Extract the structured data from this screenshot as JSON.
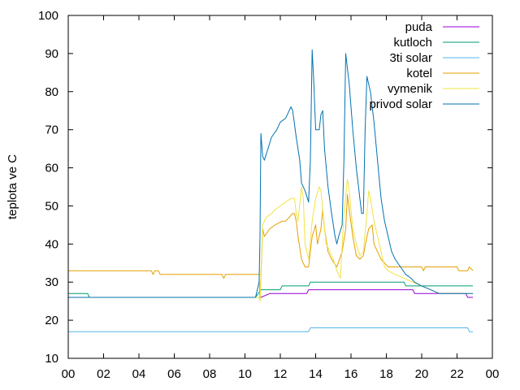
{
  "chart_data": {
    "type": "line",
    "ylabel": "teplota ve C",
    "xlabel": "",
    "title": "",
    "xlim": [
      0,
      24
    ],
    "ylim": [
      10,
      100
    ],
    "x_ticks": [
      "00",
      "02",
      "04",
      "06",
      "08",
      "10",
      "12",
      "14",
      "16",
      "18",
      "20",
      "22",
      "00"
    ],
    "y_ticks": [
      "10",
      "20",
      "30",
      "40",
      "50",
      "60",
      "70",
      "80",
      "90",
      "100"
    ],
    "grid": false,
    "legend_position": "top-right",
    "series": [
      {
        "name": "puda",
        "color": "#9400d3",
        "points": [
          [
            0,
            26
          ],
          [
            1.2,
            26
          ],
          [
            1.2,
            26
          ],
          [
            10.9,
            26
          ],
          [
            11.4,
            27
          ],
          [
            13.5,
            27
          ],
          [
            13.6,
            28
          ],
          [
            19.5,
            28
          ],
          [
            19.6,
            27
          ],
          [
            21.5,
            27
          ],
          [
            21.6,
            27
          ],
          [
            22.5,
            27
          ],
          [
            22.6,
            26
          ],
          [
            22.9,
            26
          ]
        ]
      },
      {
        "name": "kutloch",
        "color": "#009e73",
        "points": [
          [
            0,
            27
          ],
          [
            1.1,
            27
          ],
          [
            1.2,
            26
          ],
          [
            10.6,
            26
          ],
          [
            10.9,
            28
          ],
          [
            11.5,
            28
          ],
          [
            11.6,
            28
          ],
          [
            12.0,
            28
          ],
          [
            12.1,
            29
          ],
          [
            13.6,
            29
          ],
          [
            13.7,
            30
          ],
          [
            19.0,
            30
          ],
          [
            19.1,
            29
          ],
          [
            22.9,
            29
          ]
        ]
      },
      {
        "name": "3ti solar",
        "color": "#56b4e9",
        "points": [
          [
            0,
            17
          ],
          [
            13.6,
            17
          ],
          [
            13.7,
            18
          ],
          [
            22.6,
            18
          ],
          [
            22.7,
            17
          ],
          [
            22.9,
            17
          ]
        ]
      },
      {
        "name": "kotel",
        "color": "#e69f00",
        "points": [
          [
            0,
            33
          ],
          [
            4.7,
            33
          ],
          [
            4.8,
            32
          ],
          [
            4.9,
            33
          ],
          [
            5.1,
            33
          ],
          [
            5.2,
            32
          ],
          [
            8.7,
            32
          ],
          [
            8.8,
            31
          ],
          [
            8.9,
            32
          ],
          [
            10.8,
            32
          ],
          [
            10.85,
            25
          ],
          [
            10.9,
            31
          ],
          [
            11.0,
            44
          ],
          [
            11.1,
            42
          ],
          [
            11.4,
            44
          ],
          [
            11.7,
            45
          ],
          [
            12.1,
            46
          ],
          [
            12.3,
            46
          ],
          [
            12.5,
            47
          ],
          [
            12.7,
            48
          ],
          [
            12.8,
            48
          ],
          [
            12.9,
            46
          ],
          [
            13.0,
            42
          ],
          [
            13.2,
            36
          ],
          [
            13.4,
            34
          ],
          [
            13.6,
            34
          ],
          [
            13.8,
            42
          ],
          [
            14.0,
            45
          ],
          [
            14.1,
            40
          ],
          [
            14.3,
            44
          ],
          [
            14.4,
            49
          ],
          [
            14.5,
            44
          ],
          [
            14.7,
            38
          ],
          [
            14.9,
            36
          ],
          [
            15.2,
            34
          ],
          [
            15.5,
            38
          ],
          [
            15.7,
            44
          ],
          [
            15.8,
            53
          ],
          [
            15.9,
            49
          ],
          [
            16.1,
            42
          ],
          [
            16.3,
            37
          ],
          [
            16.5,
            36
          ],
          [
            16.7,
            37
          ],
          [
            16.9,
            42
          ],
          [
            17.0,
            44
          ],
          [
            17.2,
            45
          ],
          [
            17.3,
            40
          ],
          [
            17.5,
            38
          ],
          [
            17.7,
            36
          ],
          [
            17.9,
            35
          ],
          [
            18.1,
            34
          ],
          [
            19.3,
            34
          ],
          [
            19.4,
            34
          ],
          [
            20.0,
            34
          ],
          [
            20.1,
            33
          ],
          [
            20.2,
            34
          ],
          [
            22.0,
            34
          ],
          [
            22.1,
            33
          ],
          [
            22.6,
            33
          ],
          [
            22.7,
            34
          ],
          [
            22.9,
            33
          ]
        ]
      },
      {
        "name": "vymenik",
        "color": "#f0e442",
        "points": [
          [
            0,
            26
          ],
          [
            10.8,
            26
          ],
          [
            10.85,
            25
          ],
          [
            10.9,
            32
          ],
          [
            11.0,
            45
          ],
          [
            11.2,
            47
          ],
          [
            11.5,
            48
          ],
          [
            11.7,
            49
          ],
          [
            12.0,
            50
          ],
          [
            12.3,
            51
          ],
          [
            12.6,
            52
          ],
          [
            12.8,
            52
          ],
          [
            12.9,
            48
          ],
          [
            13.0,
            46
          ],
          [
            13.2,
            55
          ],
          [
            13.3,
            52
          ],
          [
            13.4,
            40
          ],
          [
            13.6,
            36
          ],
          [
            13.8,
            46
          ],
          [
            14.0,
            52
          ],
          [
            14.2,
            55
          ],
          [
            14.3,
            54
          ],
          [
            14.5,
            44
          ],
          [
            14.6,
            40
          ],
          [
            14.8,
            38
          ],
          [
            15.0,
            36
          ],
          [
            15.2,
            33
          ],
          [
            15.4,
            31
          ],
          [
            15.6,
            48
          ],
          [
            15.8,
            57
          ],
          [
            15.9,
            54
          ],
          [
            16.1,
            44
          ],
          [
            16.3,
            40
          ],
          [
            16.5,
            37
          ],
          [
            16.7,
            38
          ],
          [
            16.9,
            48
          ],
          [
            17.0,
            54
          ],
          [
            17.1,
            52
          ],
          [
            17.3,
            46
          ],
          [
            17.5,
            42
          ],
          [
            17.7,
            38
          ],
          [
            17.9,
            34
          ],
          [
            18.1,
            33
          ],
          [
            18.5,
            32
          ],
          [
            19.0,
            31
          ],
          [
            19.5,
            30
          ],
          [
            20.0,
            29
          ],
          [
            20.5,
            28
          ],
          [
            21.0,
            27
          ],
          [
            22.0,
            27
          ],
          [
            22.9,
            27
          ]
        ]
      },
      {
        "name": "privod solar",
        "color": "#0072b2",
        "points": [
          [
            0,
            26
          ],
          [
            10.6,
            26
          ],
          [
            10.7,
            28
          ],
          [
            10.8,
            30
          ],
          [
            10.85,
            42
          ],
          [
            10.9,
            69
          ],
          [
            11.0,
            63
          ],
          [
            11.1,
            62
          ],
          [
            11.3,
            65
          ],
          [
            11.5,
            68
          ],
          [
            11.8,
            70
          ],
          [
            12.0,
            72
          ],
          [
            12.3,
            73
          ],
          [
            12.5,
            75
          ],
          [
            12.6,
            76
          ],
          [
            12.7,
            75
          ],
          [
            12.9,
            68
          ],
          [
            13.1,
            62
          ],
          [
            13.2,
            56
          ],
          [
            13.4,
            54
          ],
          [
            13.6,
            51
          ],
          [
            13.7,
            62
          ],
          [
            13.8,
            91
          ],
          [
            13.9,
            82
          ],
          [
            14.0,
            70
          ],
          [
            14.2,
            70
          ],
          [
            14.3,
            74
          ],
          [
            14.4,
            75
          ],
          [
            14.5,
            65
          ],
          [
            14.7,
            55
          ],
          [
            14.9,
            48
          ],
          [
            15.1,
            42
          ],
          [
            15.2,
            40
          ],
          [
            15.3,
            42
          ],
          [
            15.5,
            45
          ],
          [
            15.6,
            62
          ],
          [
            15.7,
            90
          ],
          [
            15.9,
            82
          ],
          [
            16.1,
            70
          ],
          [
            16.3,
            60
          ],
          [
            16.5,
            52
          ],
          [
            16.6,
            48
          ],
          [
            16.7,
            48
          ],
          [
            16.8,
            70
          ],
          [
            16.9,
            84
          ],
          [
            17.1,
            80
          ],
          [
            17.3,
            72
          ],
          [
            17.5,
            62
          ],
          [
            17.7,
            52
          ],
          [
            17.9,
            46
          ],
          [
            18.1,
            42
          ],
          [
            18.3,
            38
          ],
          [
            18.5,
            36
          ],
          [
            18.8,
            34
          ],
          [
            19.1,
            32
          ],
          [
            19.4,
            31
          ],
          [
            19.6,
            30
          ],
          [
            20.0,
            29
          ],
          [
            20.5,
            28
          ],
          [
            21.0,
            27
          ],
          [
            22.0,
            27
          ],
          [
            22.9,
            27
          ]
        ]
      }
    ]
  }
}
